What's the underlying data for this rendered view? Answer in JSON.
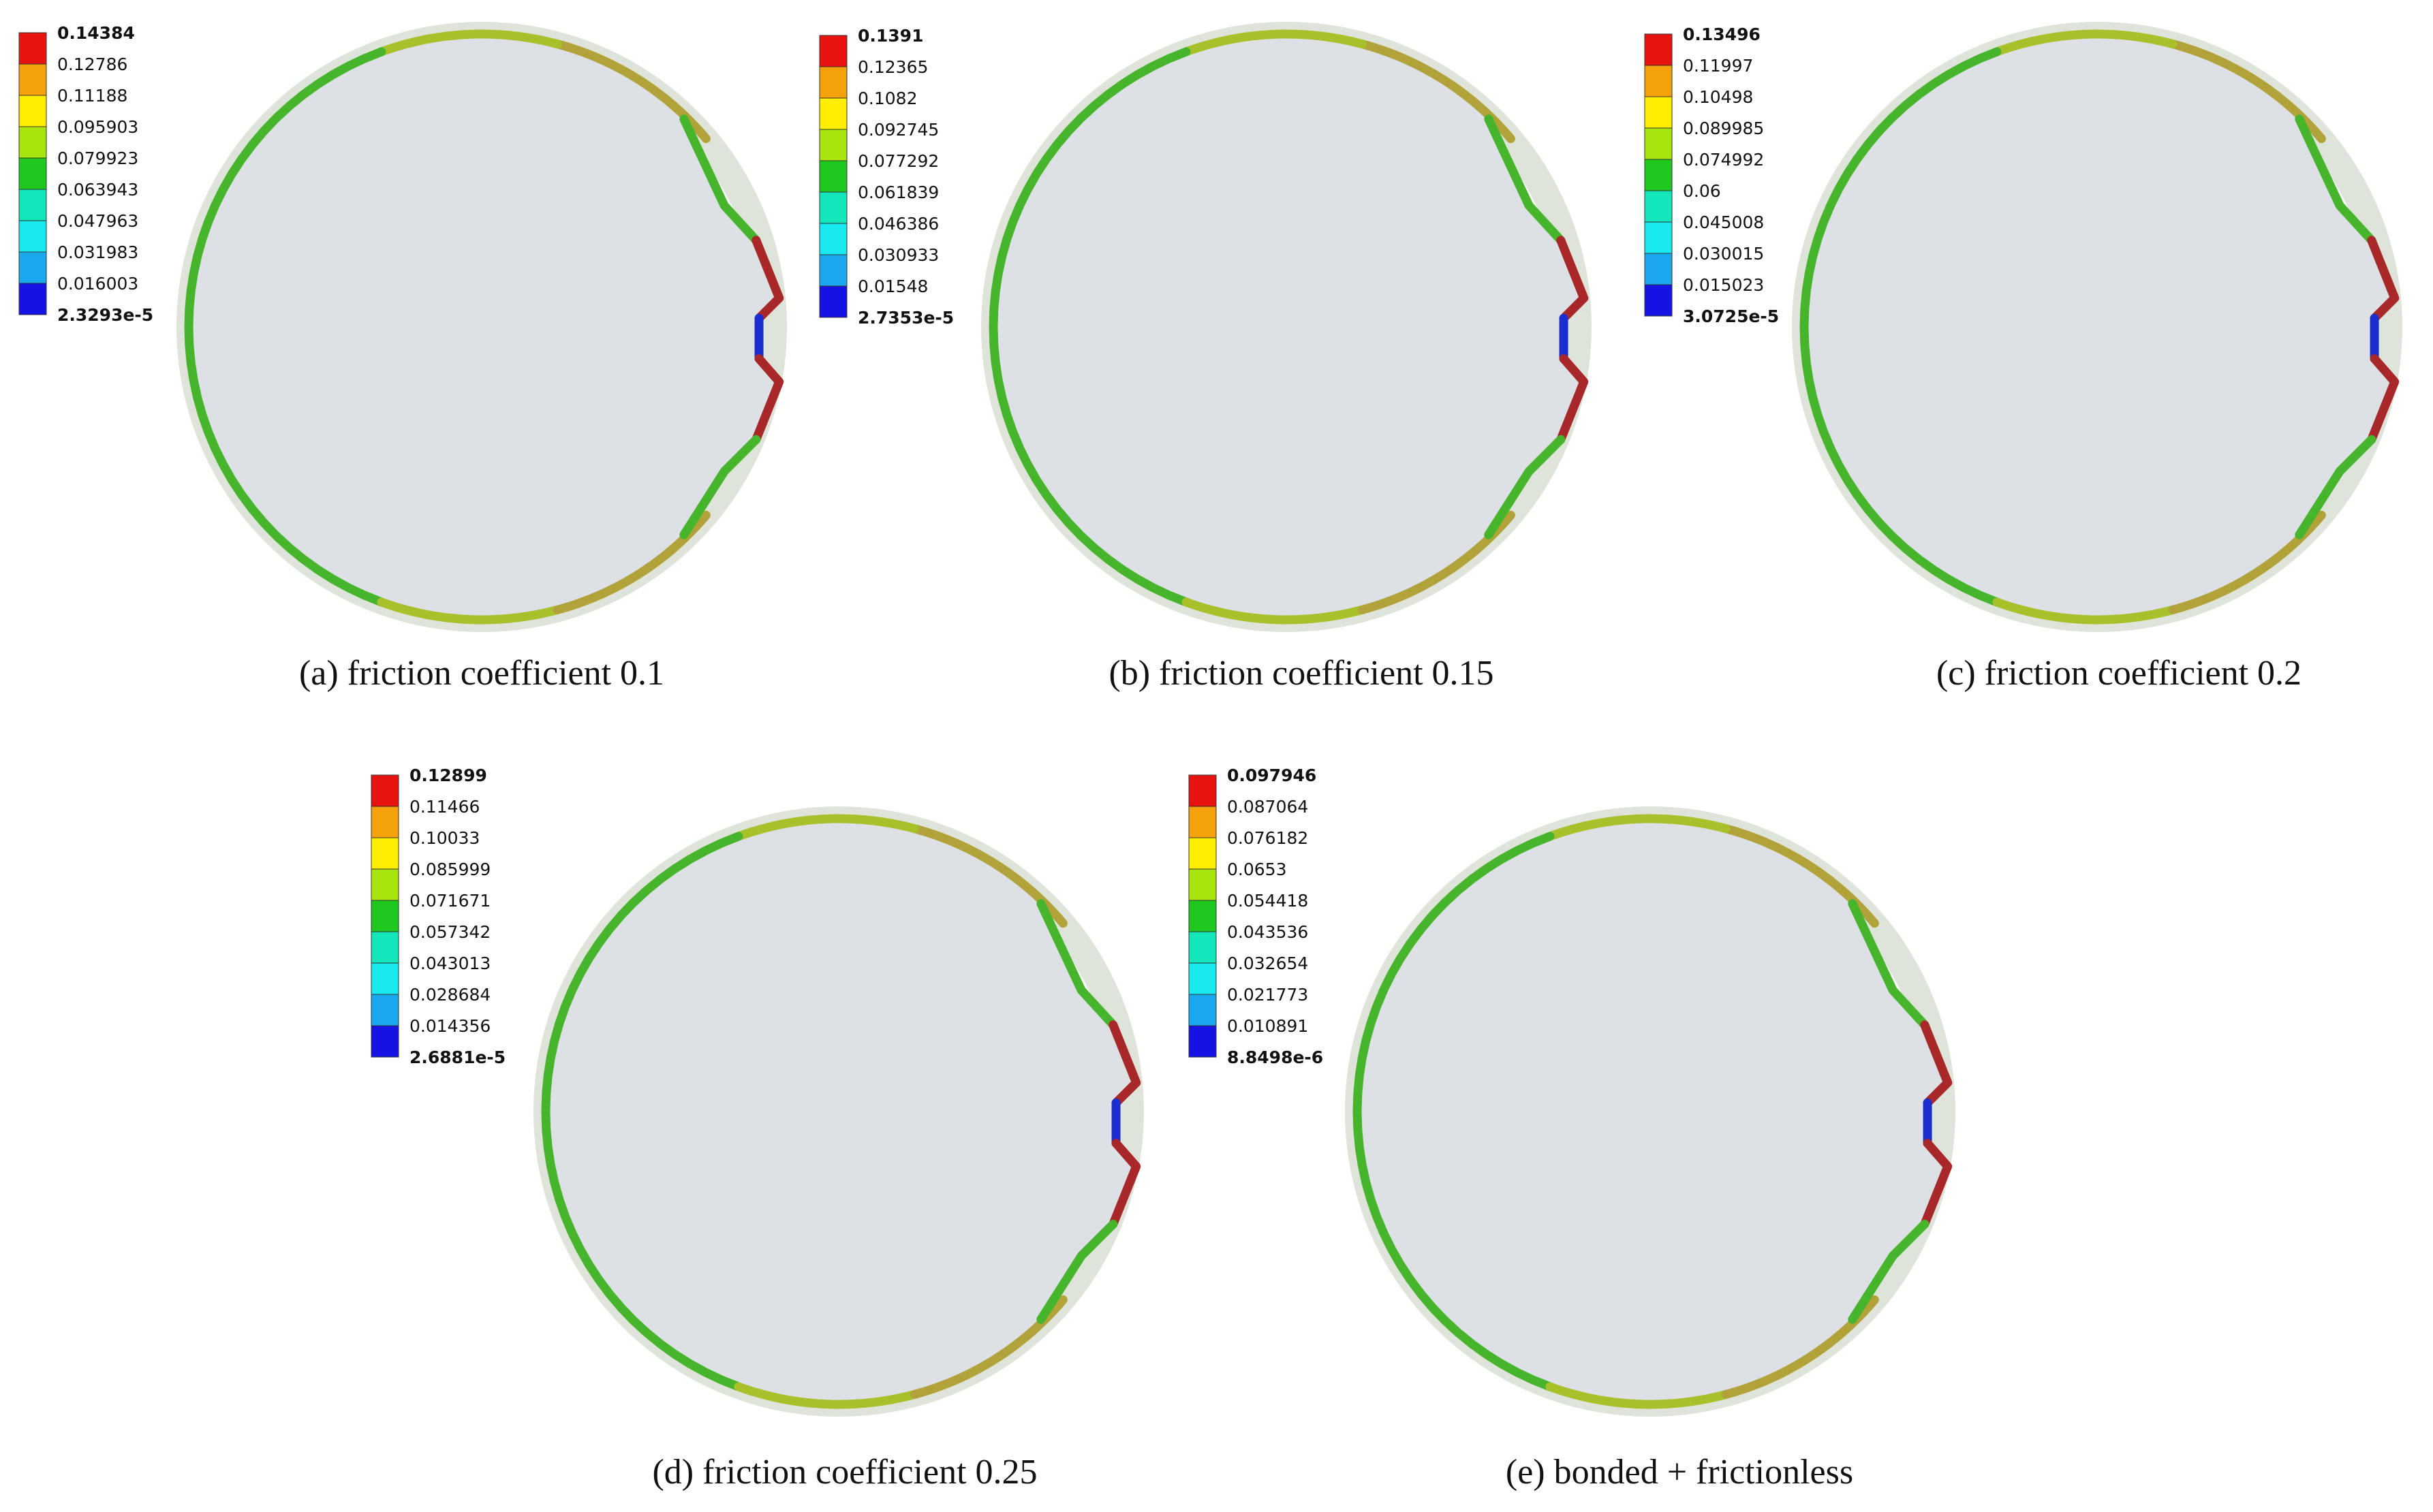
{
  "legend_colors": [
    "#e8120f",
    "#f5a20a",
    "#ffee00",
    "#a8e40e",
    "#1fc81e",
    "#13e6b8",
    "#17e9ee",
    "#1aa8ee",
    "#1612e4"
  ],
  "colors": {
    "outer_ring": "#dfe4db",
    "disc": "#dde0e5",
    "contact_green": "#47b52c",
    "contact_yellowgreen": "#a8c02a",
    "contact_olive": "#b1a33a",
    "contact_red": "#a8282a",
    "contact_blue": "#1a2ed0"
  },
  "panels": [
    {
      "id": "a",
      "caption": "(a) friction coefficient 0.1",
      "legend_values": [
        "0.14384",
        "0.12786",
        "0.11188",
        "0.095903",
        "0.079923",
        "0.063943",
        "0.047963",
        "0.031983",
        "0.016003",
        "2.3293e-5"
      ]
    },
    {
      "id": "b",
      "caption": "(b) friction coefficient 0.15",
      "legend_values": [
        "0.1391",
        "0.12365",
        "0.1082",
        "0.092745",
        "0.077292",
        "0.061839",
        "0.046386",
        "0.030933",
        "0.01548",
        "2.7353e-5"
      ]
    },
    {
      "id": "c",
      "caption": "(c) friction coefficient 0.2",
      "legend_values": [
        "0.13496",
        "0.11997",
        "0.10498",
        "0.089985",
        "0.074992",
        "0.06",
        "0.045008",
        "0.030015",
        "0.015023",
        "3.0725e-5"
      ]
    },
    {
      "id": "d",
      "caption": "(d) friction coefficient 0.25",
      "legend_values": [
        "0.12899",
        "0.11466",
        "0.10033",
        "0.085999",
        "0.071671",
        "0.057342",
        "0.043013",
        "0.028684",
        "0.014356",
        "2.6881e-5"
      ]
    },
    {
      "id": "e",
      "caption": "(e) bonded + frictionless",
      "legend_values": [
        "0.097946",
        "0.087064",
        "0.076182",
        "0.0653",
        "0.054418",
        "0.043536",
        "0.032654",
        "0.021773",
        "0.010891",
        "8.8498e-6"
      ]
    }
  ]
}
